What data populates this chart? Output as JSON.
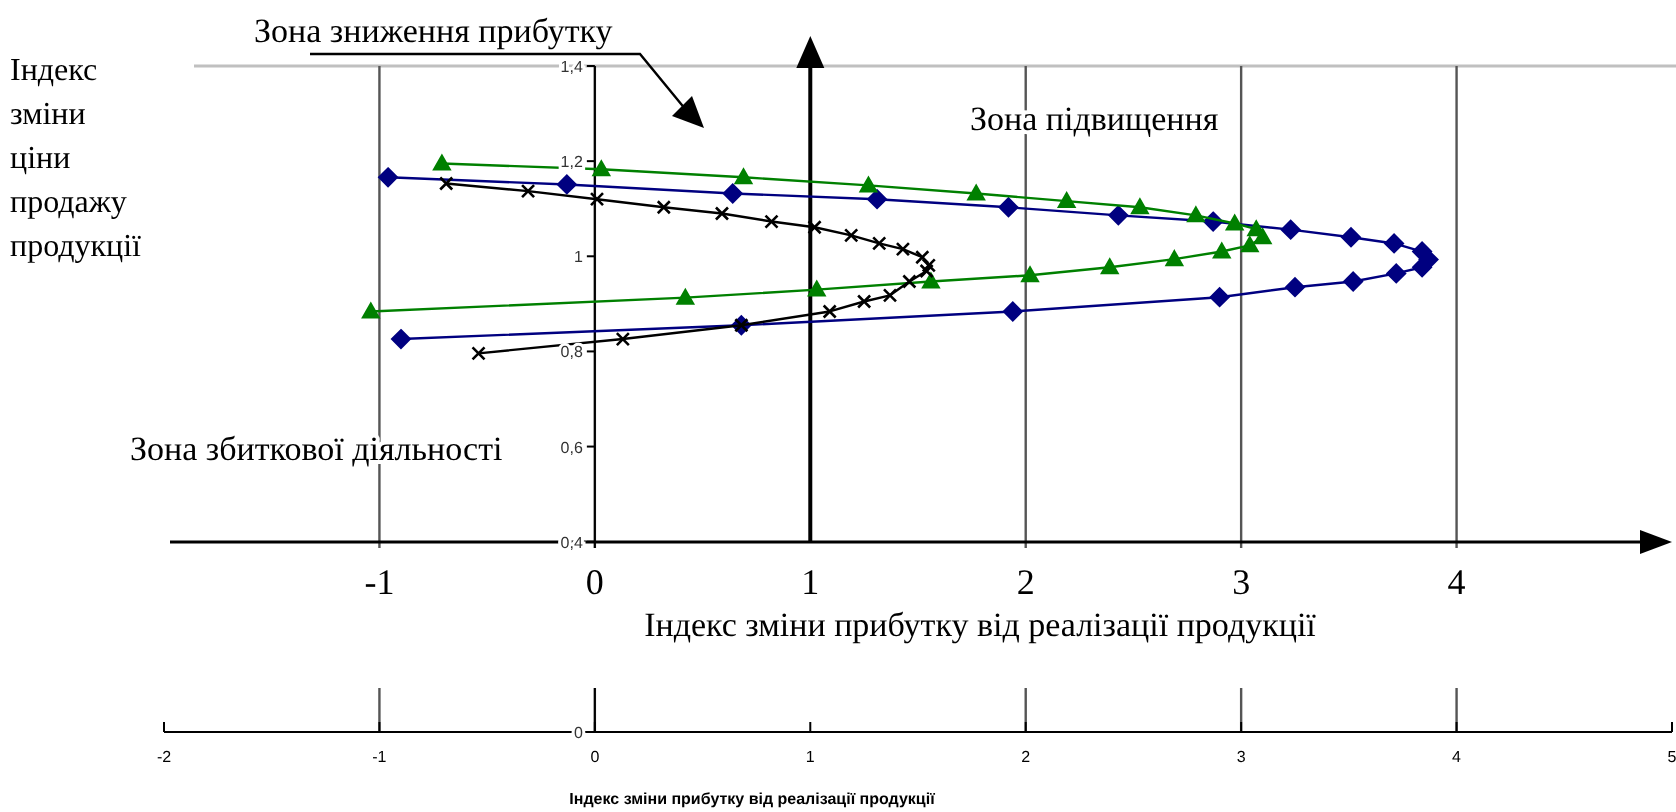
{
  "chart_data": {
    "type": "line",
    "title": null,
    "xlabel": "Індекс зміни прибутку від реалізації продукції",
    "x2label": "Індекс зміни прибутку від реалізації продукції",
    "ylabel": "Індекс зміни ціни продажу продукції",
    "xlim": [
      -2,
      5
    ],
    "xticks": [
      -2,
      -1,
      0,
      1,
      2,
      3,
      4,
      5
    ],
    "x2lim": [
      -2,
      5
    ],
    "x2ticks": [
      -1,
      0,
      1,
      2,
      3,
      4
    ],
    "ylim": [
      0,
      1.4
    ],
    "yticks": [
      {
        "value": 0,
        "label": "0"
      },
      {
        "value": 0.4,
        "label": "0,4"
      },
      {
        "value": 0.6,
        "label": "0,6"
      },
      {
        "value": 0.8,
        "label": "0,8"
      },
      {
        "value": 1,
        "label": "1"
      },
      {
        "value": 1.2,
        "label": "1,2"
      },
      {
        "value": 1.4,
        "label": "1,4"
      }
    ],
    "grid": "x",
    "line_style": "solid",
    "ref_lines": [
      {
        "axis": "x",
        "value": 1,
        "label": null
      }
    ],
    "annotations": [
      "Зона зниження прибутку",
      "Зона підвищення",
      "Зона збиткової діяльності"
    ],
    "series": [
      {
        "color": "#000080",
        "marker": "diamond",
        "x": [
          -0.96,
          -0.13,
          0.64,
          1.31,
          1.92,
          2.43,
          2.87,
          3.23,
          3.51,
          3.71,
          3.84,
          3.87,
          3.84,
          3.72,
          3.52,
          3.25,
          2.9,
          1.94,
          0.68,
          -0.9
        ],
        "values": [
          1.166,
          1.151,
          1.132,
          1.12,
          1.103,
          1.086,
          1.073,
          1.056,
          1.04,
          1.027,
          1.01,
          0.993,
          0.977,
          0.964,
          0.947,
          0.935,
          0.914,
          0.884,
          0.855,
          0.826
        ]
      },
      {
        "color": "#008000",
        "marker": "triangle",
        "x": [
          -0.71,
          0.03,
          0.69,
          1.27,
          1.77,
          2.19,
          2.53,
          2.79,
          2.97,
          3.07,
          3.1,
          3.04,
          2.91,
          2.69,
          2.39,
          2.02,
          1.56,
          1.03,
          0.42,
          -1.04
        ],
        "values": [
          1.195,
          1.183,
          1.166,
          1.149,
          1.132,
          1.116,
          1.103,
          1.086,
          1.069,
          1.057,
          1.04,
          1.023,
          1.01,
          0.994,
          0.977,
          0.96,
          0.947,
          0.93,
          0.913,
          0.884
        ]
      },
      {
        "color": "#000000",
        "marker": "cross",
        "x": [
          -0.69,
          -0.31,
          0.01,
          0.32,
          0.59,
          0.82,
          1.02,
          1.19,
          1.32,
          1.43,
          1.52,
          1.55,
          1.54,
          1.46,
          1.37,
          1.25,
          1.09,
          0.68,
          0.13,
          -0.54
        ],
        "values": [
          1.153,
          1.137,
          1.12,
          1.103,
          1.09,
          1.073,
          1.061,
          1.044,
          1.027,
          1.015,
          0.998,
          0.981,
          0.969,
          0.947,
          0.918,
          0.905,
          0.884,
          0.855,
          0.826,
          0.796
        ]
      }
    ]
  }
}
